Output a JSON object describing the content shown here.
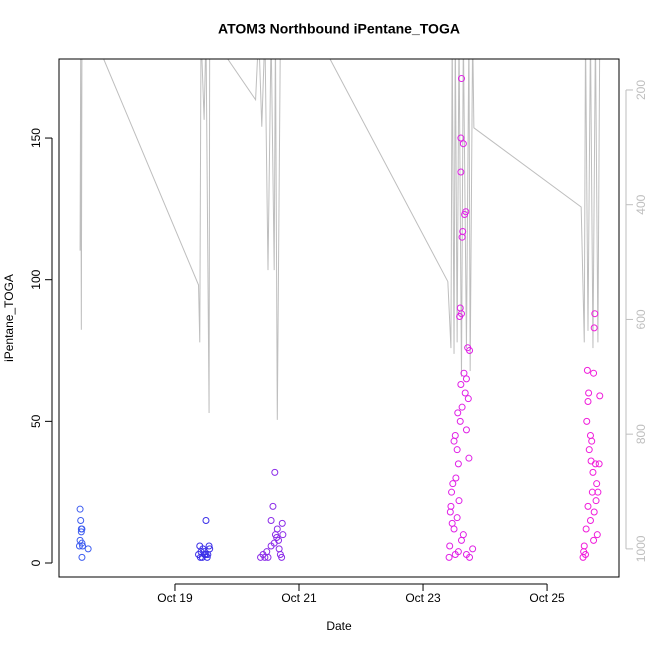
{
  "chart_data": {
    "type": "scatter",
    "title": "ATOM3 Northbound iPentane_TOGA",
    "x_label": "Date",
    "y_label": "iPentane_TOGA",
    "xlim": [
      17.13,
      26.16
    ],
    "xticks": [
      {
        "value": 19,
        "label": "Oct 19"
      },
      {
        "value": 21,
        "label": "Oct 21"
      },
      {
        "value": 23,
        "label": "Oct 23"
      },
      {
        "value": 25,
        "label": "Oct 25"
      }
    ],
    "ylim": [
      -4.94,
      177.9
    ],
    "yticks": [
      0,
      50,
      100,
      150
    ],
    "y2lim": [
      146,
      1049
    ],
    "y2_reversed": true,
    "y2ticks": [
      200,
      400,
      600,
      800,
      1000
    ],
    "y2_color": "#bebebe",
    "series": [
      {
        "type": "line",
        "axis": "y2",
        "color": "#bebebe",
        "x": [
          17.47,
          17.48,
          17.49,
          17.5,
          17.85,
          19.38,
          19.4,
          19.42,
          19.47,
          19.5,
          19.55,
          19.56,
          20.3,
          20.35,
          20.4,
          20.45,
          20.5,
          20.55,
          20.6,
          20.62,
          20.65,
          20.7,
          21.5,
          23.4,
          23.45,
          23.47,
          23.5,
          23.52,
          23.55,
          23.58,
          23.62,
          23.65,
          23.7,
          23.74,
          23.76,
          23.8,
          23.82,
          25.55,
          25.6,
          25.62,
          25.66,
          25.7,
          25.74,
          25.78,
          25.82,
          25.85
        ],
        "values": [
          480,
          120,
          618,
          120,
          146,
          540,
          640,
          100,
          252,
          100,
          763,
          100,
          217,
          100,
          264,
          100,
          514,
          100,
          514,
          100,
          775,
          100,
          146,
          534,
          650,
          100,
          660,
          100,
          640,
          100,
          700,
          100,
          650,
          100,
          690,
          100,
          266,
          404,
          640,
          100,
          620,
          100,
          650,
          100,
          640,
          100
        ]
      },
      {
        "type": "scatter",
        "color": "#3d5cf0",
        "x": [
          17.47,
          17.48,
          17.49,
          17.5,
          17.49,
          17.47,
          17.5,
          17.51,
          17.5,
          17.46,
          17.6
        ],
        "values": [
          19,
          15,
          12,
          12,
          11,
          8,
          7,
          6,
          2,
          6,
          5
        ]
      },
      {
        "type": "scatter",
        "color": "#3a2ee8",
        "x": [
          19.5,
          19.4,
          19.45,
          19.42,
          19.48,
          19.38,
          19.41,
          19.52,
          19.55,
          19.47,
          19.53,
          19.44,
          19.56,
          19.5
        ],
        "values": [
          15,
          6,
          5,
          4,
          3,
          3,
          2,
          2,
          6,
          4,
          3,
          2,
          5,
          3
        ]
      },
      {
        "type": "scatter",
        "color": "#8a2be8",
        "x": [
          20.38,
          20.42,
          20.45,
          20.5,
          20.55,
          20.58,
          20.55,
          20.61,
          20.65,
          20.62,
          20.67,
          20.68,
          20.7,
          20.72,
          20.73,
          20.74,
          20.6,
          20.48,
          20.64
        ],
        "values": [
          2,
          3,
          2,
          2,
          6,
          20,
          15,
          32,
          12,
          10,
          8,
          5,
          3,
          2,
          14,
          10,
          7,
          4,
          9
        ]
      },
      {
        "type": "scatter",
        "color": "#e020e6",
        "x": [
          23.62,
          23.61,
          23.65,
          23.61,
          23.69,
          23.67,
          23.64,
          23.63,
          23.6,
          23.62,
          23.59,
          23.72,
          23.75,
          23.66,
          23.7,
          23.61,
          23.68,
          23.73,
          23.63,
          23.56,
          23.6,
          23.7,
          23.52,
          23.5,
          23.55,
          23.74,
          23.57,
          23.53,
          23.48,
          23.46,
          23.58,
          23.45,
          23.44,
          23.55,
          23.47,
          23.5,
          23.65,
          23.62,
          23.43,
          23.57,
          23.42,
          23.7,
          23.8,
          23.75,
          23.52
        ],
        "values": [
          171,
          150,
          148,
          138,
          124,
          123,
          117,
          115,
          90,
          88,
          87,
          76,
          75,
          67,
          65,
          63,
          60,
          58,
          55,
          53,
          50,
          47,
          45,
          43,
          40,
          37,
          35,
          30,
          28,
          25,
          22,
          20,
          18,
          16,
          14,
          12,
          10,
          8,
          6,
          4,
          2,
          3,
          5,
          2,
          3
        ]
      },
      {
        "type": "scatter",
        "color": "#f01cdb",
        "x": [
          25.77,
          25.76,
          25.65,
          25.75,
          25.67,
          25.66,
          25.64,
          25.7,
          25.72,
          25.68,
          25.71,
          25.78,
          25.74,
          25.8,
          25.82,
          25.79,
          25.66,
          25.76,
          25.7,
          25.63,
          25.81,
          25.75,
          25.6,
          25.59,
          25.62,
          25.58,
          25.85,
          25.84,
          25.73
        ],
        "values": [
          88,
          83,
          68,
          67,
          60,
          57,
          50,
          45,
          43,
          40,
          36,
          35,
          32,
          28,
          25,
          22,
          20,
          18,
          15,
          12,
          10,
          8,
          6,
          4,
          3,
          2,
          59,
          35,
          25
        ]
      }
    ]
  }
}
